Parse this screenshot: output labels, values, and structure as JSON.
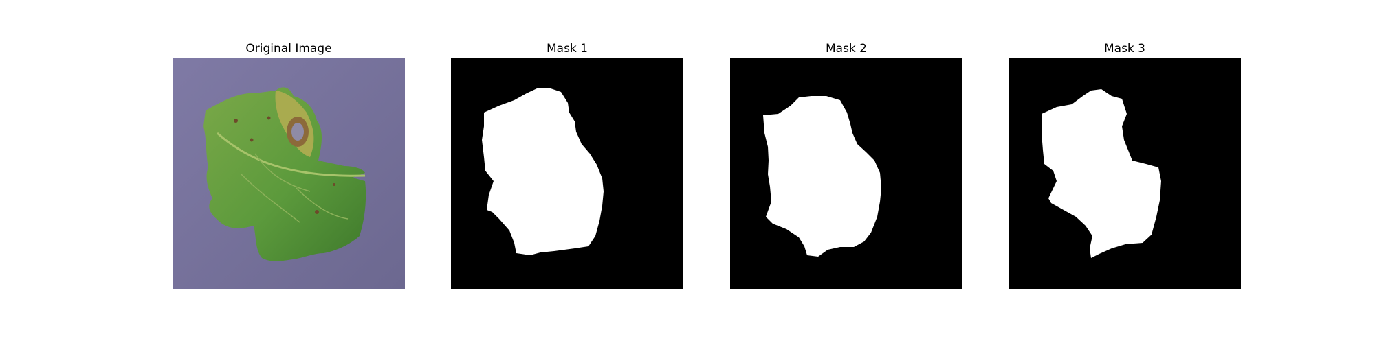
{
  "panels": [
    {
      "title": "Original Image"
    },
    {
      "title": "Mask 1"
    },
    {
      "title": "Mask 2"
    },
    {
      "title": "Mask 3"
    }
  ],
  "colors": {
    "background": "#ffffff",
    "mask_background": "#000000",
    "mask_foreground": "#ffffff",
    "photo_background": "#77729a",
    "leaf_green": "#5f9b3c",
    "leaf_dark_green": "#3f7a2a",
    "leaf_yellow": "#a6a84a",
    "lesion_brown": "#7a5a2a"
  }
}
